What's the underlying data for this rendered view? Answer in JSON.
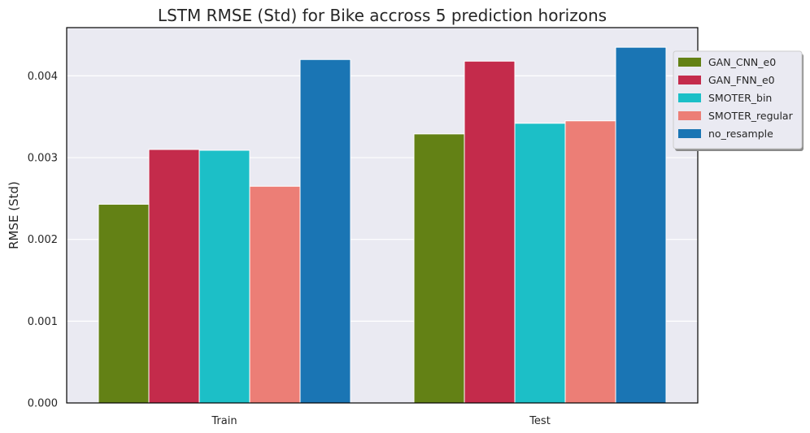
{
  "chart_data": {
    "type": "bar",
    "title": "LSTM RMSE (Std) for Bike accross 5 prediction horizons",
    "xlabel": "",
    "ylabel": "RMSE (Std)",
    "categories": [
      "Train",
      "Test"
    ],
    "ylim": [
      0,
      0.00459
    ],
    "yticks": [
      0.0,
      0.001,
      0.002,
      0.003,
      0.004
    ],
    "ytick_labels": [
      "0.000",
      "0.001",
      "0.002",
      "0.003",
      "0.004"
    ],
    "grid": true,
    "legend_position": "top-right, outside",
    "series": [
      {
        "name": "GAN_CNN_e0",
        "color": "#638115",
        "values": [
          0.00243,
          0.00329
        ]
      },
      {
        "name": "GAN_FNN_e0",
        "color": "#c42b4b",
        "values": [
          0.0031,
          0.00418
        ]
      },
      {
        "name": "SMOTER_bin",
        "color": "#1cbfc7",
        "values": [
          0.00309,
          0.00342
        ]
      },
      {
        "name": "SMOTER_regular",
        "color": "#ec7e76",
        "values": [
          0.00265,
          0.00345
        ]
      },
      {
        "name": "no_resample",
        "color": "#1a75b4",
        "values": [
          0.0042,
          0.00435
        ]
      }
    ]
  }
}
